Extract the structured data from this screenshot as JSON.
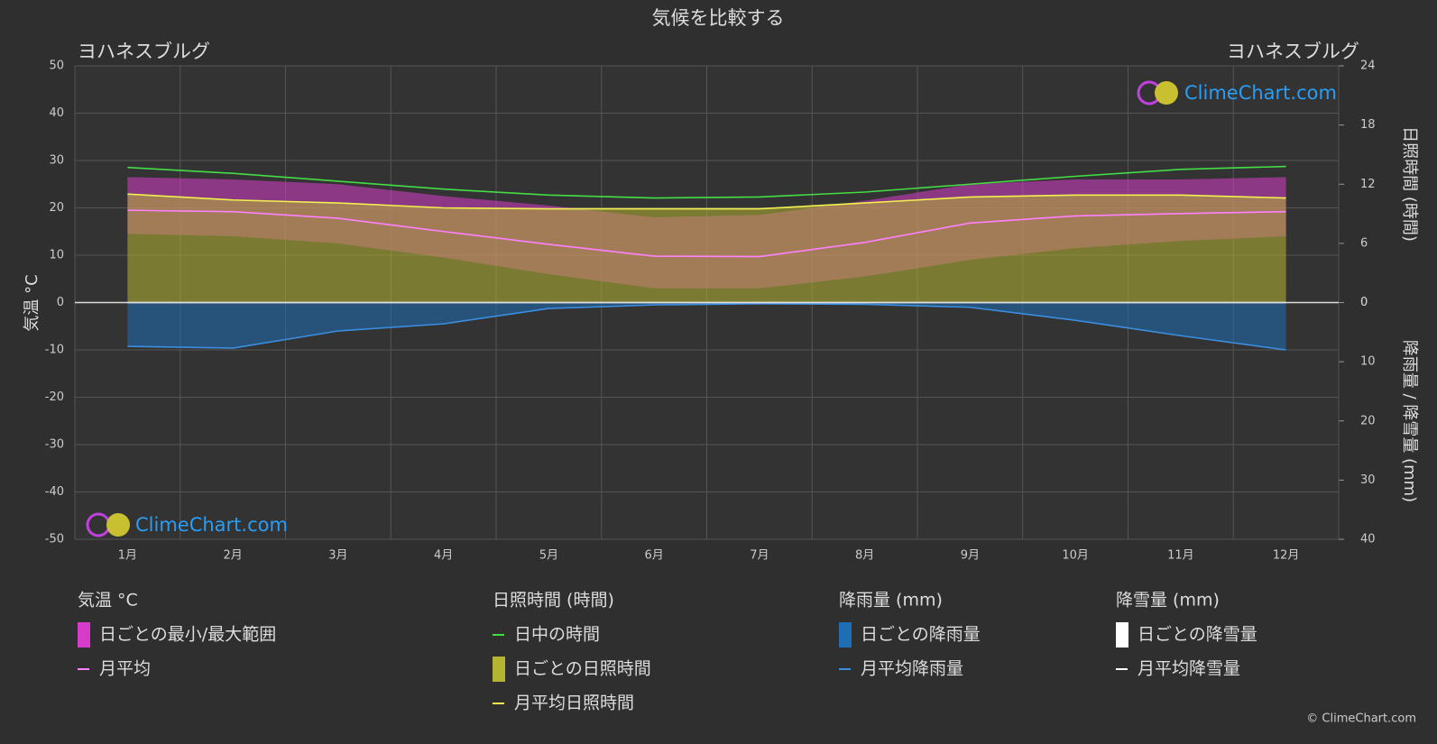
{
  "chart_data": {
    "type": "line",
    "title": "気候を比較する",
    "location_left": "ヨハネスブルグ",
    "location_right": "ヨハネスブルグ",
    "y_label": "気温 °C",
    "y2_label": "日照時間 (時間)",
    "y3_label": "降雨量 / 降雪量 (mm)",
    "watermark": "ClimeChart.com",
    "copyright": "© ClimeChart.com",
    "categories": [
      "1月",
      "2月",
      "3月",
      "4月",
      "5月",
      "6月",
      "7月",
      "8月",
      "9月",
      "10月",
      "11月",
      "12月"
    ],
    "ylim": [
      -50,
      50
    ],
    "yticks": [
      -50,
      -40,
      -30,
      -20,
      -10,
      0,
      10,
      20,
      30,
      40,
      50
    ],
    "y2lim": [
      0,
      24
    ],
    "y2ticks": [
      0,
      6,
      12,
      18,
      24
    ],
    "y3lim": [
      0,
      40
    ],
    "y3ticks": [
      0,
      10,
      20,
      30,
      40
    ],
    "grid": true,
    "legend_titles": [
      "気温 °C",
      "日照時間 (時間)",
      "降雨量 (mm)",
      "降雪量 (mm)"
    ],
    "series": [
      {
        "name": "日ごとの最小/最大範囲",
        "color": "#d63cc8",
        "kind": "range",
        "axis": "y",
        "values": [
          26.5,
          26,
          25,
          22.5,
          20.5,
          18,
          18.5,
          21.5,
          25,
          26,
          26,
          26.5
        ],
        "min_values": [
          14.5,
          14,
          12.5,
          9.5,
          6,
          3,
          3,
          5.5,
          9,
          11.5,
          13,
          14
        ]
      },
      {
        "name": "月平均",
        "color": "#ff80ff",
        "kind": "line",
        "axis": "y",
        "values": [
          19.5,
          19.2,
          17.8,
          15,
          12.3,
          9.8,
          9.7,
          12.7,
          16.8,
          18.3,
          18.8,
          19.2
        ]
      },
      {
        "name": "日中の時間",
        "color": "#44dd44",
        "kind": "line",
        "axis": "y2",
        "values": [
          13.7,
          13.1,
          12.3,
          11.5,
          10.9,
          10.6,
          10.7,
          11.2,
          12.0,
          12.8,
          13.5,
          13.8
        ]
      },
      {
        "name": "日ごとの日照時間",
        "color": "#b4b432",
        "kind": "area",
        "axis": "y2",
        "values": [
          11.0,
          10.4,
          10.1,
          9.6,
          9.5,
          9.5,
          9.5,
          10.1,
          10.7,
          10.9,
          10.9,
          10.6
        ]
      },
      {
        "name": "月平均日照時間",
        "color": "#f0f050",
        "kind": "line",
        "axis": "y2",
        "values": [
          11.0,
          10.4,
          10.1,
          9.6,
          9.5,
          9.5,
          9.5,
          10.1,
          10.7,
          10.9,
          10.9,
          10.6
        ]
      },
      {
        "name": "日ごとの降雨量",
        "color": "#1e6eb4",
        "kind": "area",
        "axis": "y3",
        "values": [
          7.4,
          7.7,
          4.8,
          3.6,
          1.0,
          0.4,
          0.2,
          0.3,
          0.8,
          3.0,
          5.6,
          8.0
        ]
      },
      {
        "name": "月平均降雨量",
        "color": "#3a8ee0",
        "kind": "line",
        "axis": "y3",
        "values": [
          7.4,
          7.7,
          4.8,
          3.6,
          1.0,
          0.4,
          0.2,
          0.3,
          0.8,
          3.0,
          5.6,
          8.0
        ]
      },
      {
        "name": "日ごとの降雪量",
        "color": "#ffffff",
        "kind": "area",
        "axis": "y3",
        "values": [
          0,
          0,
          0,
          0,
          0,
          0,
          0,
          0,
          0,
          0,
          0,
          0
        ]
      },
      {
        "name": "月平均降雪量",
        "color": "#ffffff",
        "kind": "line",
        "axis": "y3",
        "values": [
          0,
          0,
          0,
          0,
          0,
          0,
          0,
          0,
          0,
          0,
          0,
          0
        ]
      }
    ]
  }
}
